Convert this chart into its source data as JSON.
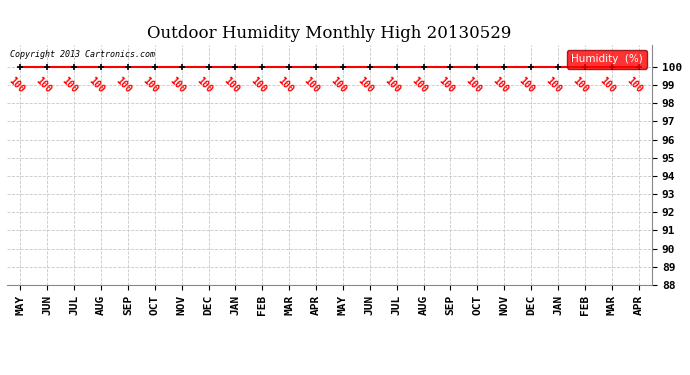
{
  "title": "Outdoor Humidity Monthly High 20130529",
  "copyright_text": "Copyright 2013 Cartronics.com",
  "legend_label": "Humidity  (%)",
  "x_labels": [
    "MAY",
    "JUN",
    "JUL",
    "AUG",
    "SEP",
    "OCT",
    "NOV",
    "DEC",
    "JAN",
    "FEB",
    "MAR",
    "APR",
    "MAY",
    "JUN",
    "JUL",
    "AUG",
    "SEP",
    "OCT",
    "NOV",
    "DEC",
    "JAN",
    "FEB",
    "MAR",
    "APR"
  ],
  "y_values": [
    100,
    100,
    100,
    100,
    100,
    100,
    100,
    100,
    100,
    100,
    100,
    100,
    100,
    100,
    100,
    100,
    100,
    100,
    100,
    100,
    100,
    100,
    100,
    100
  ],
  "ylim": [
    88,
    101.2
  ],
  "yticks": [
    88,
    89,
    90,
    91,
    92,
    93,
    94,
    95,
    96,
    97,
    98,
    99,
    100
  ],
  "line_color": "#ff0000",
  "marker_color": "#000000",
  "data_label_color": "#ff0000",
  "grid_color": "#c8c8c8",
  "background_color": "#ffffff",
  "title_fontsize": 12,
  "tick_fontsize": 8,
  "legend_bg_color": "#ff0000",
  "legend_text_color": "#ffffff"
}
